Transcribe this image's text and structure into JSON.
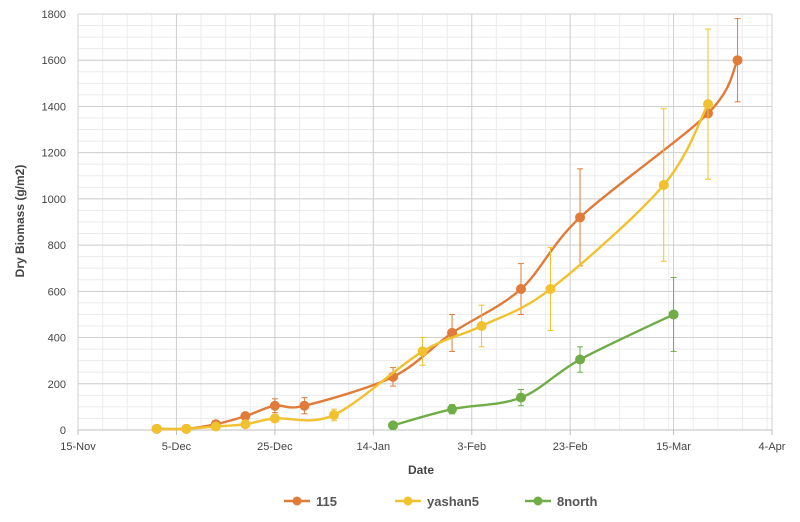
{
  "chart_data": {
    "type": "line",
    "xlabel": "Date",
    "ylabel": "Dry Biomass (g/m2)",
    "x_axis": {
      "type": "date",
      "ticks": [
        "2019-11-15",
        "2019-12-05",
        "2019-12-25",
        "2020-01-14",
        "2020-02-03",
        "2020-02-23",
        "2020-03-15",
        "2020-04-04"
      ],
      "tick_labels": [
        "15-Nov",
        "5-Dec",
        "25-Dec",
        "14-Jan",
        "3-Feb",
        "23-Feb",
        "15-Mar",
        "4-Apr"
      ],
      "minor_step_days": 5
    },
    "y_axis": {
      "range": [
        0,
        1800
      ],
      "ticks": [
        0,
        200,
        400,
        600,
        800,
        1000,
        1200,
        1400,
        1600,
        1800
      ],
      "minor_step": 50
    },
    "grid": true,
    "legend_position": "bottom",
    "series": [
      {
        "name": "115",
        "color": "#E07B39",
        "points": [
          {
            "x": "2019-12-01",
            "y": 5,
            "err": 5
          },
          {
            "x": "2019-12-07",
            "y": 5,
            "err": 5
          },
          {
            "x": "2019-12-13",
            "y": 25,
            "err": 8
          },
          {
            "x": "2019-12-19",
            "y": 60,
            "err": 10
          },
          {
            "x": "2019-12-25",
            "y": 105,
            "err": 30
          },
          {
            "x": "2019-12-31",
            "y": 105,
            "err": 35
          },
          {
            "x": "2020-01-18",
            "y": 230,
            "err": 40
          },
          {
            "x": "2020-01-30",
            "y": 420,
            "err": 80
          },
          {
            "x": "2020-02-13",
            "y": 610,
            "err": 110
          },
          {
            "x": "2020-02-25",
            "y": 920,
            "err": 210
          },
          {
            "x": "2020-03-22",
            "y": 1370,
            "err": 0
          },
          {
            "x": "2020-03-28",
            "y": 1600,
            "err": 180
          }
        ]
      },
      {
        "name": "yashan5",
        "color": "#F2C12E",
        "points": [
          {
            "x": "2019-12-01",
            "y": 5,
            "err": 5
          },
          {
            "x": "2019-12-07",
            "y": 5,
            "err": 5
          },
          {
            "x": "2019-12-13",
            "y": 15,
            "err": 5
          },
          {
            "x": "2019-12-19",
            "y": 25,
            "err": 5
          },
          {
            "x": "2019-12-25",
            "y": 50,
            "err": 10
          },
          {
            "x": "2020-01-06",
            "y": 65,
            "err": 25
          },
          {
            "x": "2020-01-24",
            "y": 340,
            "err": 60
          },
          {
            "x": "2020-02-05",
            "y": 450,
            "err": 90
          },
          {
            "x": "2020-02-19",
            "y": 610,
            "err": 180
          },
          {
            "x": "2020-03-13",
            "y": 1060,
            "err": 330
          },
          {
            "x": "2020-03-22",
            "y": 1410,
            "err": 325
          }
        ]
      },
      {
        "name": "8north",
        "color": "#70AD47",
        "points": [
          {
            "x": "2020-01-18",
            "y": 20,
            "err": 5
          },
          {
            "x": "2020-01-30",
            "y": 90,
            "err": 20
          },
          {
            "x": "2020-02-13",
            "y": 140,
            "err": 35
          },
          {
            "x": "2020-02-25",
            "y": 305,
            "err": 55
          },
          {
            "x": "2020-03-15",
            "y": 500,
            "err": 160
          }
        ]
      }
    ]
  }
}
